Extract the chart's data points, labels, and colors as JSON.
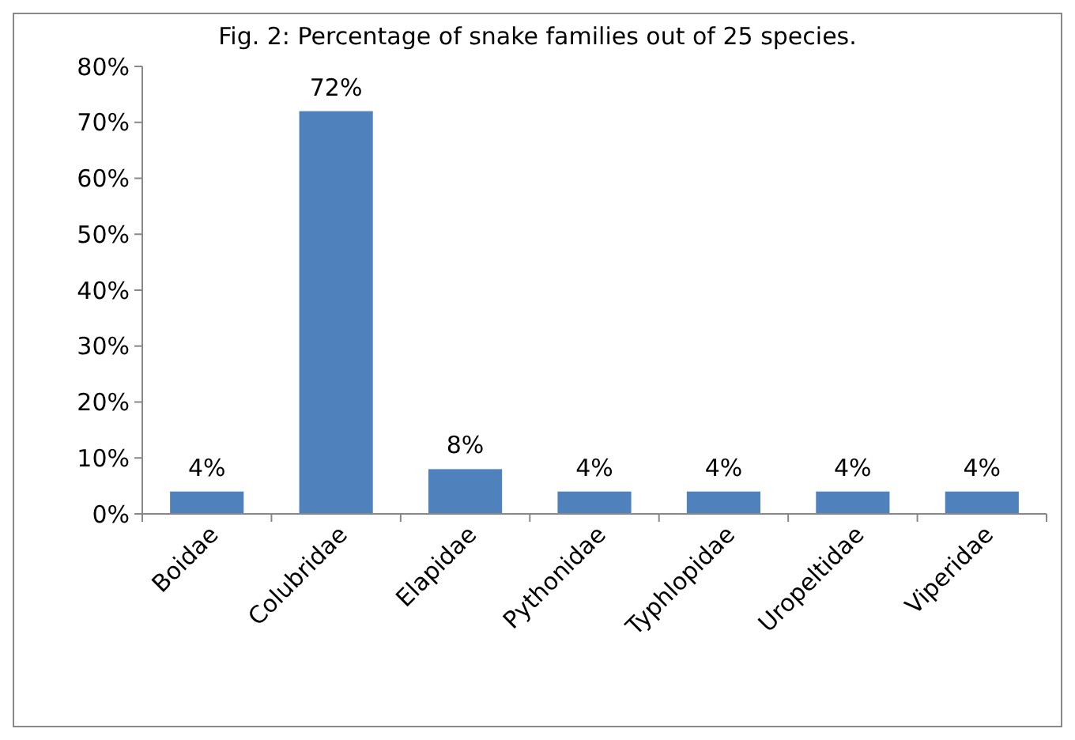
{
  "chart_data": {
    "type": "bar",
    "title": "Fig. 2: Percentage of snake families out of 25 species.",
    "categories": [
      "Boidae",
      "Colubridae",
      "Elapidae",
      "Pythonidae",
      "Typhlopidae",
      "Uropeltidae",
      "Viperidae"
    ],
    "values": [
      4,
      72,
      8,
      4,
      4,
      4,
      4
    ],
    "color": "#4f81bd",
    "value_labels": [
      "4%",
      "72%",
      "8%",
      "4%",
      "4%",
      "4%",
      "4%"
    ],
    "ylim": [
      0,
      80
    ],
    "yticks": [
      {
        "value": 0,
        "label": "0%"
      },
      {
        "value": 10,
        "label": "10%"
      },
      {
        "value": 20,
        "label": "20%"
      },
      {
        "value": 30,
        "label": "30%"
      },
      {
        "value": 40,
        "label": "40%"
      },
      {
        "value": 50,
        "label": "50%"
      },
      {
        "value": 60,
        "label": "60%"
      },
      {
        "value": 70,
        "label": "70%"
      },
      {
        "value": 80,
        "label": "80%"
      }
    ],
    "grid": false
  }
}
